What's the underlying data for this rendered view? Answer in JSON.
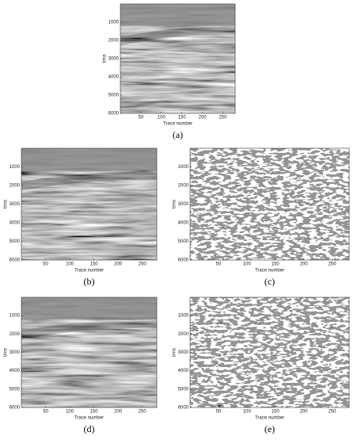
{
  "figure": {
    "panels": [
      {
        "caption": "(a)",
        "xlabel": "Trace number",
        "ylabel": "t/ms",
        "xlim": [
          0,
          280
        ],
        "ylim": [
          0,
          6000
        ],
        "xticks": [
          50,
          100,
          150,
          200,
          250
        ],
        "yticks": [
          1000,
          2000,
          3000,
          4000,
          5000,
          6000
        ]
      },
      {
        "caption": "(b)",
        "xlabel": "Trace number",
        "ylabel": "t/ms",
        "xlim": [
          0,
          280
        ],
        "ylim": [
          0,
          6000
        ],
        "xticks": [
          50,
          100,
          150,
          200,
          250
        ],
        "yticks": [
          1000,
          2000,
          3000,
          4000,
          5000,
          6000
        ]
      },
      {
        "caption": "(c)",
        "xlabel": "Trace number",
        "ylabel": "t/ms",
        "xlim": [
          0,
          280
        ],
        "ylim": [
          0,
          6000
        ],
        "xticks": [
          50,
          100,
          150,
          200,
          250
        ],
        "yticks": [
          1000,
          2000,
          3000,
          4000,
          5000,
          6000
        ]
      },
      {
        "caption": "(d)",
        "xlabel": "Trace number",
        "ylabel": "t/ms",
        "xlim": [
          0,
          280
        ],
        "ylim": [
          0,
          6000
        ],
        "xticks": [
          50,
          100,
          150,
          200,
          250
        ],
        "yticks": [
          1000,
          2000,
          3000,
          4000,
          5000,
          6000
        ]
      },
      {
        "caption": "(e)",
        "xlabel": "Trace number",
        "ylabel": "t/ms",
        "xlim": [
          0,
          280
        ],
        "ylim": [
          0,
          6000
        ],
        "xticks": [
          50,
          100,
          150,
          200,
          250
        ],
        "yticks": [
          1000,
          2000,
          3000,
          4000,
          5000,
          6000
        ]
      }
    ]
  }
}
